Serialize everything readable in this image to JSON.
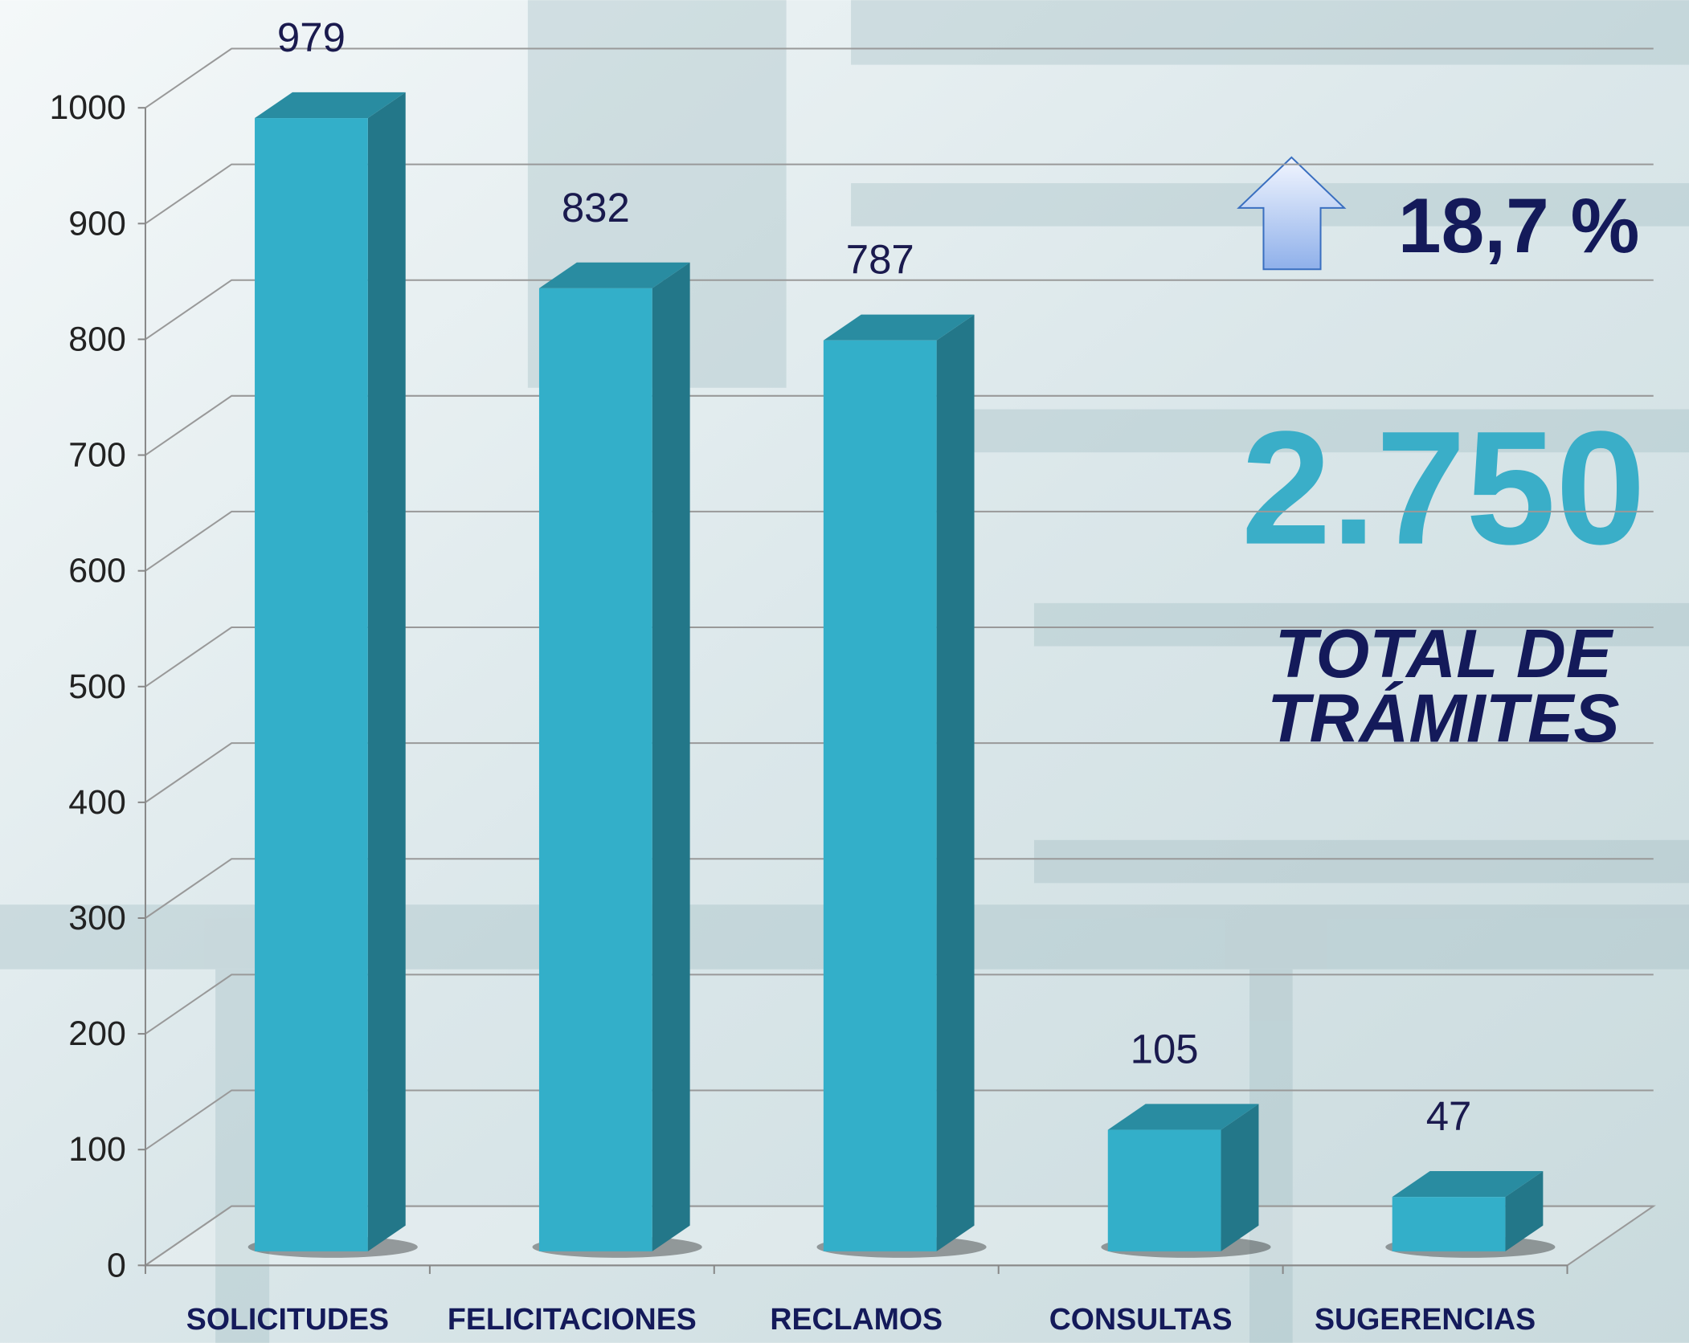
{
  "chart_data": {
    "type": "bar3d",
    "categories": [
      "SOLICITUDES",
      "FELICITACIONES",
      "RECLAMOS",
      "CONSULTAS",
      "SUGERENCIAS"
    ],
    "values": [
      979,
      832,
      787,
      105,
      47
    ],
    "color": "#33afc9",
    "ylim": [
      0,
      1000
    ],
    "yticks": [
      0,
      100,
      200,
      300,
      400,
      500,
      600,
      700,
      800,
      900,
      1000
    ],
    "grid": true,
    "annotations": {
      "change": "18,7 %",
      "total": "2.750",
      "total_label": [
        "TOTAL DE",
        "TRÁMITES"
      ]
    }
  }
}
